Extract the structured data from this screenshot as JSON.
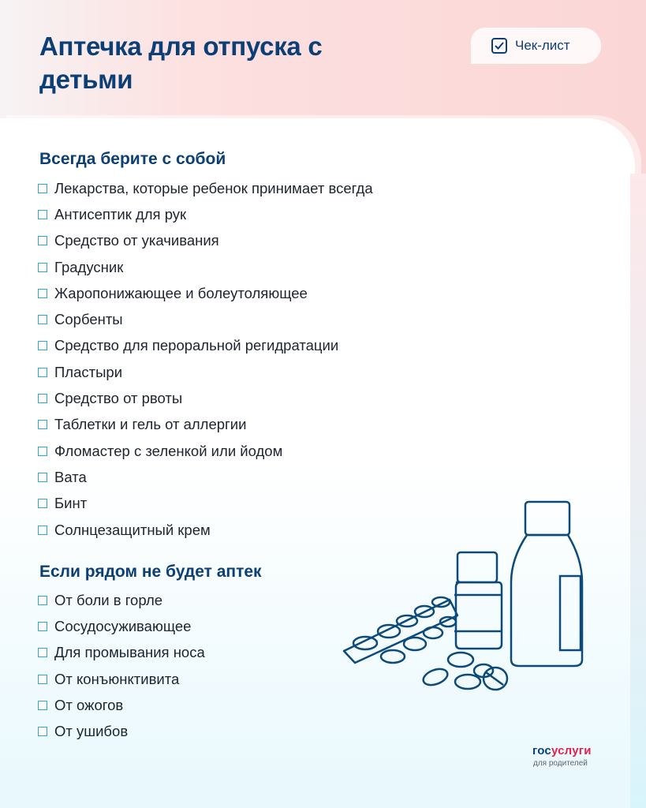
{
  "title": "Аптечка для отпуска с детьми",
  "badge": {
    "label": "Чек-лист",
    "icon": "checkbox-checked-icon"
  },
  "sections": [
    {
      "heading": "Всегда берите с собой",
      "items": [
        "Лекарства, которые ребенок принимает всегда",
        "Антисептик для рук",
        "Средство от укачивания",
        "Градусник",
        "Жаропонижающее и болеутоляющее",
        "Сорбенты",
        "Средство для пероральной регидратации",
        "Пластыри",
        "Средство от рвоты",
        "Таблетки и гель от аллергии",
        "Фломастер с зеленкой или йодом",
        "Вата",
        "Бинт",
        "Солнцезащитный крем"
      ]
    },
    {
      "heading": "Если рядом не будет аптек",
      "items": [
        "От боли в горле",
        "Сосудосуживающее",
        "Для промывания носа",
        "От конъюнктивита",
        "От ожогов",
        "От ушибов"
      ]
    }
  ],
  "logo": {
    "part1": "гос",
    "part2": "услуги",
    "subtitle": "для родителей"
  },
  "colors": {
    "heading": "#0b3f75",
    "checkbox": "#2aa9c9",
    "logo_accent": "#e4234a"
  }
}
